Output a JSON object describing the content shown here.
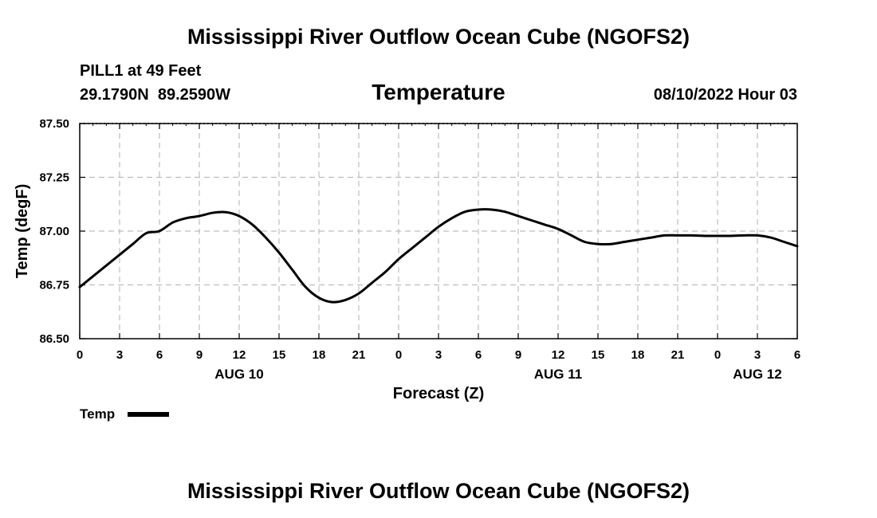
{
  "chart_data": {
    "type": "line",
    "title": "Mississippi River Outflow Ocean Cube (NGOFS2)",
    "footer_title": "Mississippi River Outflow Ocean Cube (NGOFS2)",
    "subtitle": "Temperature",
    "station": "PILL1 at 49 Feet",
    "coordinates": "29.1790N  89.2590W",
    "timestamp": "08/10/2022 Hour 03",
    "xlabel": "Forecast (Z)",
    "ylabel": "Temp (degF)",
    "xlim": [
      0,
      54
    ],
    "ylim": [
      86.5,
      87.5
    ],
    "y_ticks": [
      "86.50",
      "86.75",
      "87.00",
      "87.25",
      "87.50"
    ],
    "x_ticks": [
      "0",
      "3",
      "6",
      "9",
      "12",
      "15",
      "18",
      "21",
      "0",
      "3",
      "6",
      "9",
      "12",
      "15",
      "18",
      "21",
      "0",
      "3",
      "6"
    ],
    "day_labels": [
      {
        "label": "AUG 10",
        "x": 12
      },
      {
        "label": "AUG 11",
        "x": 36
      },
      {
        "label": "AUG 12",
        "x": 51
      }
    ],
    "grid": true,
    "legend_position": "bottom-left",
    "series": [
      {
        "name": "Temp",
        "color": "#000000",
        "x": [
          0,
          1,
          2,
          3,
          4,
          5,
          6,
          7,
          8,
          9,
          10,
          11,
          12,
          13,
          14,
          15,
          16,
          17,
          18,
          19,
          20,
          21,
          22,
          23,
          24,
          25,
          26,
          27,
          28,
          29,
          30,
          31,
          32,
          33,
          34,
          35,
          36,
          37,
          38,
          39,
          40,
          41,
          42,
          43,
          44,
          45,
          46,
          47,
          48,
          49,
          50,
          51,
          52,
          53,
          54
        ],
        "values": [
          86.74,
          86.79,
          86.84,
          86.89,
          86.94,
          86.99,
          87.0,
          87.04,
          87.06,
          87.07,
          87.085,
          87.088,
          87.07,
          87.03,
          86.97,
          86.9,
          86.82,
          86.74,
          86.69,
          86.67,
          86.68,
          86.71,
          86.76,
          86.81,
          86.87,
          86.92,
          86.97,
          87.02,
          87.06,
          87.09,
          87.1,
          87.1,
          87.09,
          87.07,
          87.05,
          87.03,
          87.01,
          86.98,
          86.95,
          86.94,
          86.94,
          86.95,
          86.96,
          86.97,
          86.98,
          86.98,
          86.98,
          86.978,
          86.978,
          86.978,
          86.98,
          86.98,
          86.97,
          86.95,
          86.93
        ]
      }
    ]
  }
}
